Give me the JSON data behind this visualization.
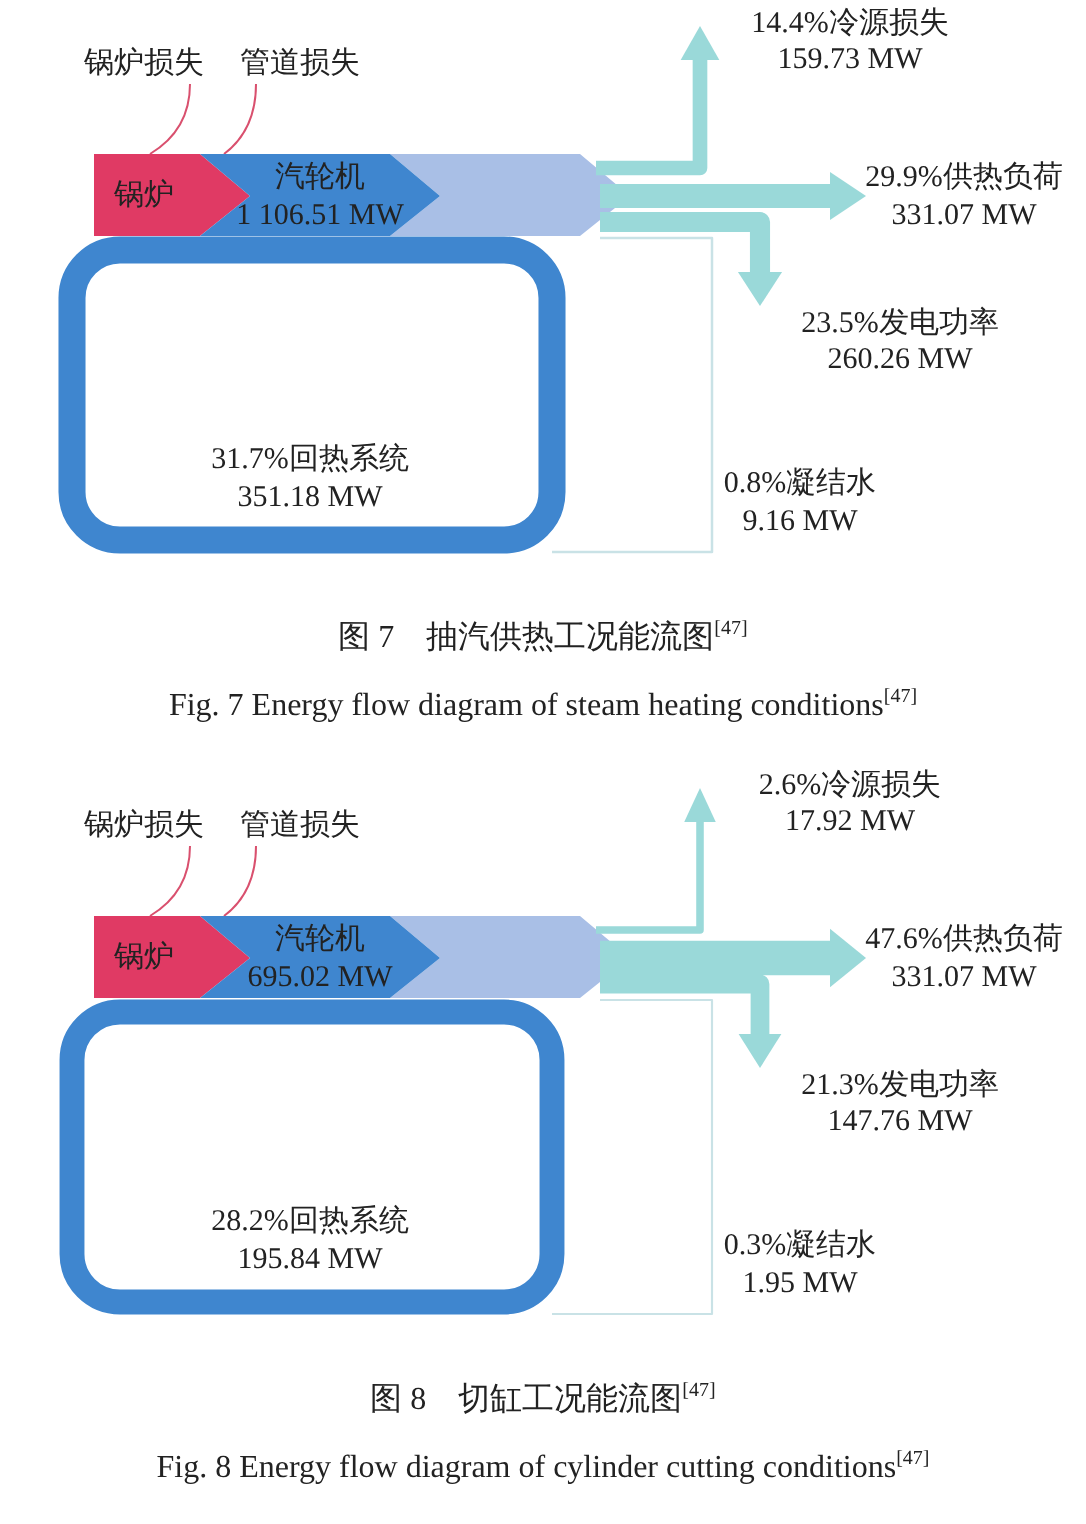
{
  "chart_data": [
    {
      "type": "other",
      "title": "图 7　抽汽供热工况能流图$^{[47]}$",
      "subtitle": "Fig. 7  Energy flow diagram of steam heating conditions$^{[47]}$",
      "categories": [
        "锅炉损失",
        "管道损失",
        "锅炉",
        "汽轮机",
        "14.4%冷源损失",
        "29.9%供热负荷",
        "23.5%发电功率",
        "31.7%回热系统",
        "0.8%凝结水"
      ],
      "values": [
        null,
        null,
        null,
        1106.51,
        159.73,
        331.07,
        260.26,
        351.18,
        9.16
      ],
      "value_labels": [
        null,
        null,
        null,
        "1 106.51 MW",
        "159.73 MW",
        "331.07 MW",
        "260.26 MW",
        "351.18 MW",
        "9.16 MW"
      ],
      "colors": [
        "#d9506e",
        "#d9506e",
        "#e03a64",
        "#3f86cf",
        "#9ad9d9",
        "#9ad9d9",
        "#9ad9d9",
        "#3f86cf",
        "#c9e2e6"
      ]
    },
    {
      "type": "other",
      "title": "图 8　切缸工况能流图$^{[47]}$",
      "subtitle": "Fig. 8  Energy flow diagram of cylinder cutting conditions$^{[47]}$",
      "categories": [
        "锅炉损失",
        "管道损失",
        "锅炉",
        "汽轮机",
        "2.6%冷源损失",
        "47.6%供热负荷",
        "21.3%发电功率",
        "28.2%回热系统",
        "0.3%凝结水"
      ],
      "values": [
        null,
        null,
        null,
        695.02,
        17.92,
        331.07,
        147.76,
        195.84,
        1.95
      ],
      "value_labels": [
        null,
        null,
        null,
        "695.02 MW",
        "17.92 MW",
        "331.07 MW",
        "147.76 MW",
        "195.84 MW",
        "1.95 MW"
      ],
      "colors": [
        "#d9506e",
        "#d9506e",
        "#e03a64",
        "#3f86cf",
        "#9ad9d9",
        "#9ad9d9",
        "#9ad9d9",
        "#3f86cf",
        "#c9e2e6"
      ]
    }
  ]
}
